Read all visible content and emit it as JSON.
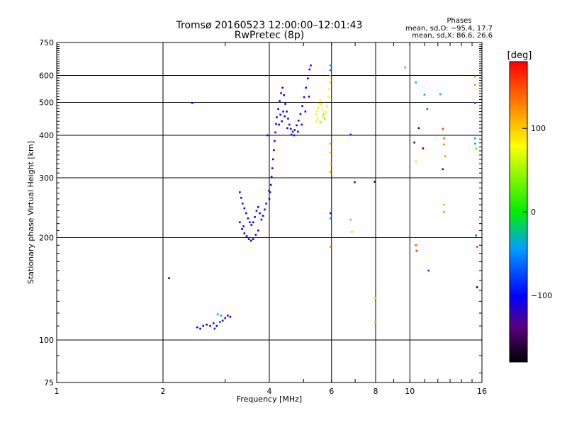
{
  "header": {
    "title_line1": "Tromsø 20160523 12:00:00–12:01:43",
    "title_line2": "RwPretec (8p)",
    "phase_heading": "Phases",
    "phase_o": "mean, sd,O: −95.4, 17.7",
    "phase_x": "mean, sd,X:  86.6, 26.6"
  },
  "colorbar": {
    "label": "[deg]",
    "ticks": [
      {
        "value": 100,
        "label": "100"
      },
      {
        "value": 0,
        "label": "0"
      },
      {
        "value": -100,
        "label": "−100"
      }
    ]
  },
  "chart_data": {
    "type": "scatter",
    "xlabel": "Frequency [MHz]",
    "ylabel": "Stationary phase Virtual Height [km]",
    "x_scale": "log",
    "y_scale": "log",
    "xlim": [
      1,
      16
    ],
    "ylim": [
      75,
      750
    ],
    "color_range": [
      -180,
      180
    ],
    "grid": true,
    "x_ticks": [
      {
        "value": 1,
        "label": "1"
      },
      {
        "value": 2,
        "label": "2"
      },
      {
        "value": 4,
        "label": "4"
      },
      {
        "value": 6,
        "label": "6"
      },
      {
        "value": 8,
        "label": "8"
      },
      {
        "value": 10,
        "label": "10"
      },
      {
        "value": 16,
        "label": "16"
      }
    ],
    "y_ticks": [
      {
        "value": 75,
        "label": "75"
      },
      {
        "value": 100,
        "label": "100"
      },
      {
        "value": 200,
        "label": "200"
      },
      {
        "value": 300,
        "label": "300"
      },
      {
        "value": 400,
        "label": "400"
      },
      {
        "value": 500,
        "label": "500"
      },
      {
        "value": 600,
        "label": "600"
      },
      {
        "value": 750,
        "label": "750"
      }
    ],
    "points": [
      [
        2.08,
        152,
        -110
      ],
      [
        2.42,
        498,
        -95
      ],
      [
        2.5,
        109,
        -110
      ],
      [
        2.55,
        108,
        -110
      ],
      [
        2.6,
        110,
        -105
      ],
      [
        2.66,
        111,
        -100
      ],
      [
        2.72,
        110,
        -110
      ],
      [
        2.78,
        112,
        -95
      ],
      [
        2.84,
        110,
        -100
      ],
      [
        2.9,
        113,
        -80
      ],
      [
        2.95,
        114,
        -110
      ],
      [
        3.0,
        116,
        -120
      ],
      [
        3.05,
        118,
        -115
      ],
      [
        3.1,
        117,
        -110
      ],
      [
        2.86,
        119,
        -40
      ],
      [
        2.92,
        118,
        -30
      ],
      [
        2.8,
        108,
        -90
      ],
      [
        3.3,
        272,
        -110
      ],
      [
        3.33,
        262,
        -115
      ],
      [
        3.36,
        252,
        -110
      ],
      [
        3.4,
        244,
        -105
      ],
      [
        3.44,
        236,
        -110
      ],
      [
        3.48,
        228,
        -115
      ],
      [
        3.52,
        222,
        -110
      ],
      [
        3.56,
        218,
        -100
      ],
      [
        3.6,
        222,
        -105
      ],
      [
        3.64,
        230,
        -110
      ],
      [
        3.68,
        240,
        -115
      ],
      [
        3.72,
        246,
        -110
      ],
      [
        3.76,
        236,
        -105
      ],
      [
        3.8,
        226,
        -110
      ],
      [
        3.84,
        232,
        -100
      ],
      [
        3.88,
        242,
        -110
      ],
      [
        3.92,
        252,
        -115
      ],
      [
        3.35,
        212,
        -110
      ],
      [
        3.4,
        206,
        -110
      ],
      [
        3.45,
        202,
        -105
      ],
      [
        3.5,
        198,
        -110
      ],
      [
        3.55,
        196,
        -100
      ],
      [
        3.6,
        198,
        -110
      ],
      [
        3.66,
        204,
        -110
      ],
      [
        3.72,
        210,
        -105
      ],
      [
        3.3,
        222,
        -110
      ],
      [
        3.38,
        216,
        -115
      ],
      [
        3.95,
        400,
        -95
      ],
      [
        3.99,
        275,
        -110
      ],
      [
        4.0,
        260,
        -110
      ],
      [
        4.02,
        272,
        -105
      ],
      [
        4.04,
        286,
        -110
      ],
      [
        4.06,
        302,
        -110
      ],
      [
        4.08,
        320,
        -115
      ],
      [
        4.1,
        340,
        -110
      ],
      [
        4.12,
        362,
        -105
      ],
      [
        4.14,
        385,
        -110
      ],
      [
        4.16,
        408,
        -110
      ],
      [
        4.18,
        432,
        -105
      ],
      [
        4.2,
        452,
        -110
      ],
      [
        4.24,
        478,
        -110
      ],
      [
        4.28,
        505,
        -105
      ],
      [
        4.32,
        532,
        -110
      ],
      [
        4.36,
        552,
        -110
      ],
      [
        4.4,
        525,
        -105
      ],
      [
        4.44,
        495,
        -110
      ],
      [
        4.48,
        470,
        -110
      ],
      [
        4.52,
        448,
        -105
      ],
      [
        4.56,
        430,
        -110
      ],
      [
        4.6,
        418,
        -110
      ],
      [
        4.66,
        410,
        -115
      ],
      [
        4.72,
        415,
        -110
      ],
      [
        4.78,
        428,
        -105
      ],
      [
        4.84,
        442,
        -110
      ],
      [
        4.9,
        462,
        -110
      ],
      [
        4.96,
        488,
        -105
      ],
      [
        5.02,
        518,
        -110
      ],
      [
        5.08,
        552,
        -110
      ],
      [
        5.14,
        588,
        -105
      ],
      [
        5.2,
        625,
        -110
      ],
      [
        5.24,
        642,
        -110
      ],
      [
        4.3,
        460,
        -110
      ],
      [
        4.34,
        440,
        -110
      ],
      [
        4.38,
        470,
        -105
      ],
      [
        4.42,
        455,
        -110
      ],
      [
        4.5,
        420,
        -110
      ],
      [
        4.62,
        402,
        -105
      ],
      [
        4.7,
        400,
        -110
      ],
      [
        4.82,
        410,
        -110
      ],
      [
        4.94,
        430,
        -105
      ],
      [
        5.06,
        470,
        -110
      ],
      [
        5.18,
        520,
        -110
      ],
      [
        4.26,
        430,
        -100
      ],
      [
        5.42,
        462,
        85
      ],
      [
        5.46,
        472,
        80
      ],
      [
        5.5,
        482,
        90
      ],
      [
        5.54,
        496,
        85
      ],
      [
        5.58,
        508,
        75
      ],
      [
        5.62,
        494,
        90
      ],
      [
        5.66,
        476,
        80
      ],
      [
        5.7,
        462,
        50
      ],
      [
        5.74,
        448,
        40
      ],
      [
        5.78,
        468,
        85
      ],
      [
        5.82,
        488,
        90
      ],
      [
        5.86,
        520,
        80
      ],
      [
        5.9,
        548,
        75
      ],
      [
        5.94,
        572,
        95
      ],
      [
        5.95,
        598,
        115
      ],
      [
        5.95,
        622,
        -60
      ],
      [
        5.96,
        642,
        -40
      ],
      [
        5.48,
        448,
        70
      ],
      [
        5.58,
        438,
        45
      ],
      [
        5.68,
        455,
        60
      ],
      [
        5.44,
        440,
        85
      ],
      [
        5.95,
        378,
        110
      ],
      [
        5.95,
        356,
        100
      ],
      [
        5.96,
        330,
        90
      ],
      [
        5.95,
        312,
        120
      ],
      [
        5.96,
        236,
        -100
      ],
      [
        5.96,
        228,
        -40
      ],
      [
        5.96,
        188,
        130
      ],
      [
        6.8,
        402,
        -90
      ],
      [
        6.8,
        226,
        120
      ],
      [
        6.85,
        208,
        100
      ],
      [
        6.98,
        291,
        -120
      ],
      [
        7.95,
        292,
        -160
      ],
      [
        7.96,
        133,
        95
      ],
      [
        7.96,
        113,
        105
      ],
      [
        9.7,
        633,
        130
      ],
      [
        10.4,
        572,
        -30
      ],
      [
        10.6,
        420,
        -160
      ],
      [
        10.3,
        381,
        -150
      ],
      [
        10.9,
        366,
        -100
      ],
      [
        10.4,
        335,
        95
      ],
      [
        10.4,
        190,
        150
      ],
      [
        10.45,
        183,
        160
      ],
      [
        11.0,
        527,
        -40
      ],
      [
        11.2,
        478,
        -60
      ],
      [
        11.3,
        160,
        -80
      ],
      [
        12.2,
        528,
        -20
      ],
      [
        12.4,
        418,
        160
      ],
      [
        12.5,
        392,
        140
      ],
      [
        12.5,
        376,
        130
      ],
      [
        12.6,
        347,
        120
      ],
      [
        12.4,
        318,
        -140
      ],
      [
        12.5,
        238,
        120
      ],
      [
        12.5,
        250,
        110
      ],
      [
        15.3,
        498,
        -70
      ],
      [
        15.3,
        392,
        -40
      ],
      [
        15.3,
        378,
        -20
      ],
      [
        15.4,
        366,
        30
      ],
      [
        15.4,
        203,
        -60
      ],
      [
        15.5,
        188,
        160
      ],
      [
        15.5,
        143,
        -170
      ],
      [
        15.3,
        596,
        130
      ],
      [
        15.3,
        563,
        120
      ]
    ]
  }
}
